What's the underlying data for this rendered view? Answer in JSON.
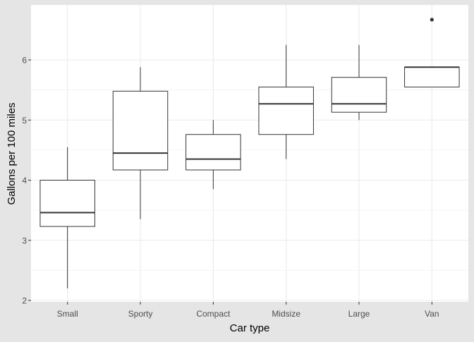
{
  "chart_data": {
    "type": "boxplot",
    "title": "",
    "xlabel": "Car type",
    "ylabel": "Gallons per 100 miles",
    "ylim": [
      2,
      6.8
    ],
    "yticks": [
      2,
      3,
      4,
      5,
      6
    ],
    "grid": true,
    "legend": "none",
    "categories": [
      "Small",
      "Sporty",
      "Compact",
      "Midsize",
      "Large",
      "Van"
    ],
    "boxes": [
      {
        "category": "Small",
        "whisker_low": 2.2,
        "q1": 3.23,
        "median": 3.46,
        "q3": 4.0,
        "whisker_high": 4.55,
        "outliers": []
      },
      {
        "category": "Sporty",
        "whisker_low": 3.35,
        "q1": 4.17,
        "median": 4.45,
        "q3": 5.48,
        "whisker_high": 5.88,
        "outliers": []
      },
      {
        "category": "Compact",
        "whisker_low": 3.85,
        "q1": 4.17,
        "median": 4.35,
        "q3": 4.76,
        "whisker_high": 5.0,
        "outliers": []
      },
      {
        "category": "Midsize",
        "whisker_low": 4.35,
        "q1": 4.76,
        "median": 5.27,
        "q3": 5.55,
        "whisker_high": 6.25,
        "outliers": []
      },
      {
        "category": "Large",
        "whisker_low": 5.0,
        "q1": 5.13,
        "median": 5.27,
        "q3": 5.71,
        "whisker_high": 6.25,
        "outliers": []
      },
      {
        "category": "Van",
        "whisker_low": 5.55,
        "q1": 5.55,
        "median": 5.88,
        "q3": 5.88,
        "whisker_high": 5.88,
        "outliers": [
          6.67
        ]
      }
    ],
    "colors": {
      "background": "#e5e5e5",
      "panel": "#ffffff",
      "grid": "#ebebeb",
      "box_line": "#333333",
      "text": "#4d4d4d",
      "title_text": "#000000"
    }
  }
}
